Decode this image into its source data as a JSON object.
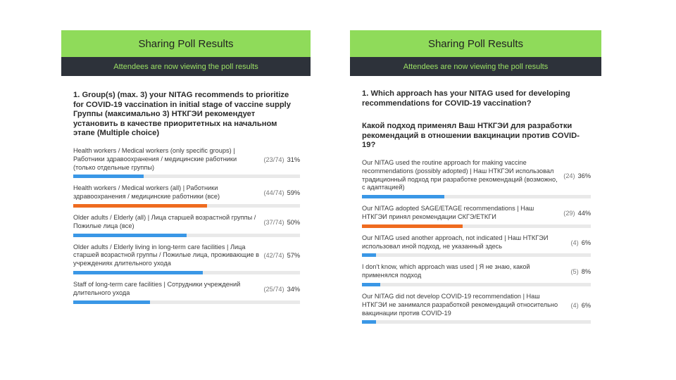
{
  "colors": {
    "header_bg": "#8fdb5a",
    "subheader_bg": "#2d323a",
    "subheader_text": "#9be064",
    "bar_blue": "#3a97e6",
    "bar_orange": "#ef6b1f",
    "track": "#e9e9e9"
  },
  "left": {
    "title": "Sharing Poll Results",
    "subtitle": "Attendees are now viewing the poll results",
    "question": "1. Group(s) (max. 3) your NITAG recommends to prioritize for COVID-19 vaccination in initial stage of vaccine supply Группы (максимально 3) НТКГЭИ рекомендует установить в качестве приоритетных на начальном этапе (Multiple choice)",
    "options": [
      {
        "text": "Health workers / Medical workers (only specific groups) | Работники здравоохранения / медицинские работники (только отдельные группы)",
        "count": "(23/74)",
        "percent": "31%",
        "value": 31,
        "color": "blue"
      },
      {
        "text": "Health workers / Medical workers (all) | Работники здравоохранения / медицинские работники (все)",
        "count": "(44/74)",
        "percent": "59%",
        "value": 59,
        "color": "orange"
      },
      {
        "text": "Older adults / Elderly (all) | Лица старшей возрастной группы / Пожилые лица (все)",
        "count": "(37/74)",
        "percent": "50%",
        "value": 50,
        "color": "blue"
      },
      {
        "text": "Older adults / Elderly living in long-term care facilities | Лица старшей возрастной группы / Пожилые лица, проживающие в учреждениях длительного ухода",
        "count": "(42/74)",
        "percent": "57%",
        "value": 57,
        "color": "blue"
      },
      {
        "text": "Staff of long-term care facilities | Сотрудники учреждений длительного ухода",
        "count": "(25/74)",
        "percent": "34%",
        "value": 34,
        "color": "blue"
      }
    ]
  },
  "right": {
    "title": "Sharing Poll Results",
    "subtitle": "Attendees are now viewing the poll results",
    "question": "1. Which approach has your NITAG used for developing recommendations for COVID-19 vaccination?",
    "question_ru": "Какой подход применял Ваш НТКГЭИ для разработки рекомендаций в отношении вакцинации против COVID-19?",
    "options": [
      {
        "text": "Our NITAG used the routine approach for making vaccine recommendations (possibly adopted) | Наш НТКГЭИ использовал традиционный подход при разработке рекомендаций (возможно, с адаптацией)",
        "count": "(24)",
        "percent": "36%",
        "value": 36,
        "color": "blue"
      },
      {
        "text": "Our NITAG adopted SAGE/ETAGE recommendations | Наш НТКГЭИ принял рекомендации СКГЭ/ЕТКГИ",
        "count": "(29)",
        "percent": "44%",
        "value": 44,
        "color": "orange"
      },
      {
        "text": "Our NITAG used another approach, not indicated | Наш НТКГЭИ использовал иной подход, не указанный здесь",
        "count": "(4)",
        "percent": "6%",
        "value": 6,
        "color": "blue"
      },
      {
        "text": "I don't know, which approach was used | Я не знаю, какой применялся подход",
        "count": "(5)",
        "percent": "8%",
        "value": 8,
        "color": "blue"
      },
      {
        "text": "Our NITAG did not develop COVID-19 recommendation  | Наш НТКГЭИ не занимался разработкой рекомендаций относительно вакцинации против COVID-19",
        "count": "(4)",
        "percent": "6%",
        "value": 6,
        "color": "blue"
      }
    ]
  }
}
